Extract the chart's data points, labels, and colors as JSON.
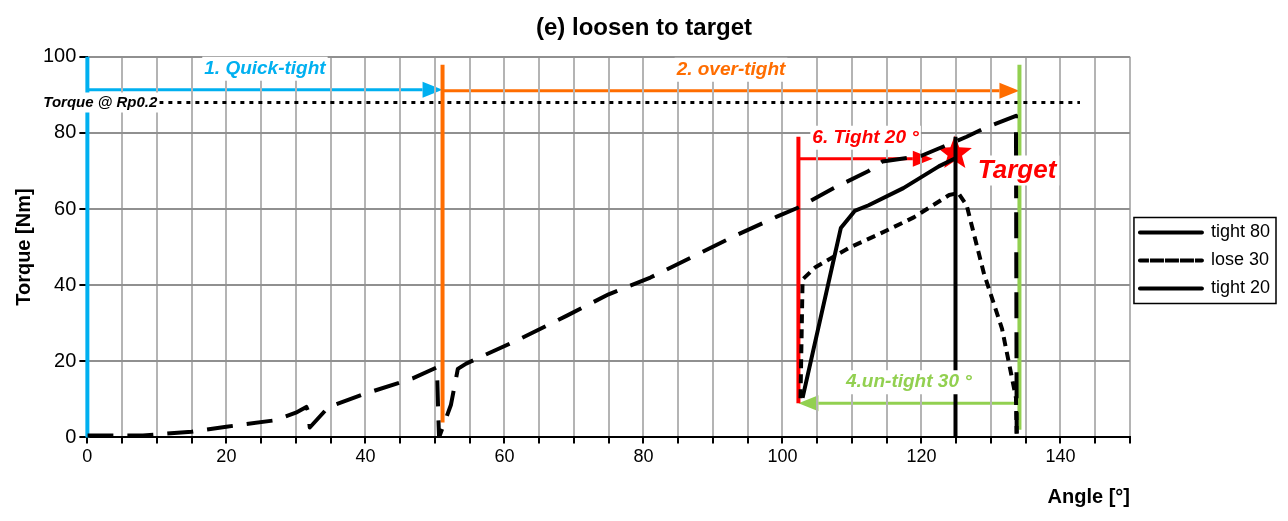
{
  "chart_data": {
    "type": "line",
    "title": "(e) loosen to target",
    "xlabel": "Angle [°]",
    "ylabel": "Torque [Nm]",
    "xlim": [
      0,
      150
    ],
    "ylim": [
      0,
      100
    ],
    "xticks": [
      0,
      {
        "value": 5,
        "label": null
      },
      {
        "value": 10,
        "label": null
      },
      {
        "value": 15,
        "label": null
      },
      20,
      {
        "value": 25,
        "label": null
      },
      {
        "value": 30,
        "label": null
      },
      {
        "value": 35,
        "label": null
      },
      40,
      {
        "value": 45,
        "label": null
      },
      {
        "value": 50,
        "label": null
      },
      {
        "value": 55,
        "label": null
      },
      60,
      {
        "value": 65,
        "label": null
      },
      {
        "value": 70,
        "label": null
      },
      {
        "value": 75,
        "label": null
      },
      80,
      {
        "value": 85,
        "label": null
      },
      {
        "value": 90,
        "label": null
      },
      {
        "value": 95,
        "label": null
      },
      100,
      {
        "value": 105,
        "label": null
      },
      {
        "value": 110,
        "label": null
      },
      {
        "value": 115,
        "label": null
      },
      120,
      {
        "value": 125,
        "label": null
      },
      {
        "value": 130,
        "label": null
      },
      {
        "value": 135,
        "label": null
      },
      140,
      {
        "value": 145,
        "label": null
      },
      {
        "value": 150,
        "label": null
      }
    ],
    "yticks": [
      0,
      20,
      40,
      60,
      80,
      100
    ],
    "grid": true,
    "legend": "right",
    "series": [
      {
        "name": "tight 80",
        "color": "#000000",
        "line_style": "dashed",
        "x": [
          0,
          8,
          15,
          20,
          27,
          30,
          31.5,
          31.7,
          32,
          34.7,
          40,
          46.8,
          50.3,
          50.5,
          50.6,
          52.3,
          53.3,
          54.5,
          62.4,
          69,
          75,
          81,
          87,
          93.2,
          99.2,
          102.3,
          107.4,
          112.4,
          114.4,
          120,
          126.5,
          129.5,
          133.6,
          133.7
        ],
        "values": [
          0.5,
          0.5,
          1.5,
          2.8,
          4.5,
          6.5,
          8,
          7.2,
          2.6,
          8,
          11.5,
          15.5,
          18.4,
          5,
          0,
          8.5,
          18,
          19.4,
          26,
          32,
          37.6,
          42,
          47.4,
          53,
          58,
          60.4,
          65.5,
          70,
          72.5,
          74,
          79,
          81.6,
          84.5,
          1
        ]
      },
      {
        "name": "lose 30",
        "color": "#000000",
        "line_style": "dotted",
        "x": [
          102.6,
          102.9,
          104.8,
          109.8,
          113.9,
          118.9,
          124,
          125.3,
          126.5,
          129,
          131.6,
          133.6,
          133.7
        ],
        "values": [
          10.3,
          41.5,
          44.8,
          50,
          53.4,
          57.8,
          63.7,
          64.2,
          61,
          43,
          28.5,
          10.4,
          1
        ]
      },
      {
        "name": "tight 20",
        "color": "#000000",
        "line_style": "solid",
        "x": [
          102.9,
          108.4,
          110.4,
          112.4,
          117.4,
          122.5,
          124.8
        ],
        "values": [
          10.4,
          55,
          59.5,
          61,
          65.5,
          71.2,
          73.3
        ]
      },
      {
        "name": "Target",
        "type": "scatter",
        "color": "#ff0000",
        "marker": "star",
        "x": [
          124.8
        ],
        "values": [
          74.6
        ]
      },
      {
        "color": "#ff6d00",
        "line_style": "solid",
        "x": [
          51.1,
          51.1
        ],
        "values": [
          3.9,
          97.9
        ]
      },
      {
        "color": "#ff0000",
        "line_style": "solid",
        "x": [
          102.3,
          102.3
        ],
        "values": [
          9,
          79
        ]
      },
      {
        "color": "#000000",
        "line_style": "solid",
        "x": [
          124.9,
          124.9
        ],
        "values": [
          0,
          79
        ]
      },
      {
        "color": "#92d050",
        "line_style": "solid",
        "x": [
          134.1,
          134.1
        ],
        "values": [
          2,
          97.9
        ]
      }
    ],
    "ref_lines": [
      {
        "axis": "x",
        "value": 0,
        "color": "#00b0f0",
        "line_style": "solid"
      },
      {
        "axis": "y",
        "value": 88,
        "label": "Torque @ Rp0.2",
        "color": "#000000",
        "line_style": "dotted"
      }
    ],
    "annotations": [
      "1. Quick-tight",
      "2. over-tight",
      "6. Tight 20 °",
      "4.un-tight 30 °"
    ]
  }
}
